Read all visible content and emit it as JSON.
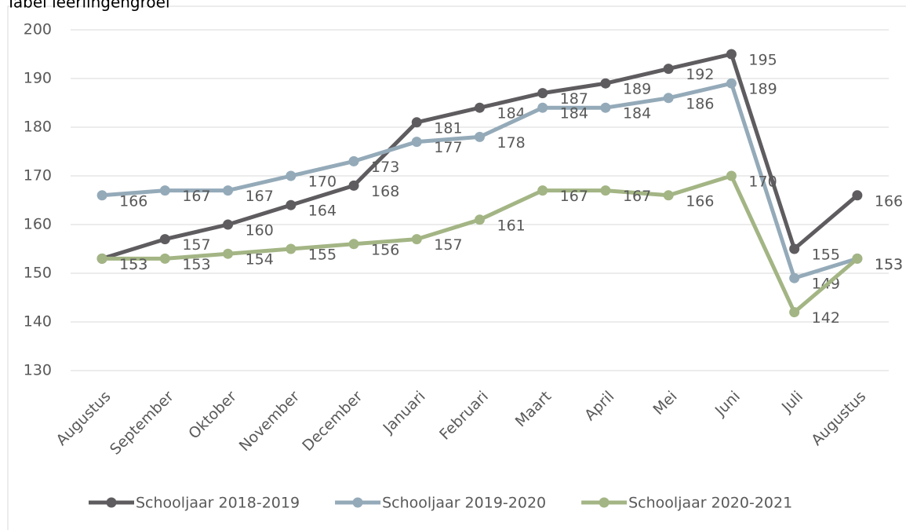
{
  "chart_data": {
    "type": "line",
    "title": "Tabel leerlingengroei",
    "categories": [
      "Augustus",
      "September",
      "Oktober",
      "November",
      "December",
      "Januari",
      "Februari",
      "Maart",
      "April",
      "Mei",
      "Juni",
      "Juli",
      "Augustus"
    ],
    "series": [
      {
        "name": "Schooljaar 2018-2019",
        "color": "#5f5c5f",
        "values": [
          153,
          157,
          160,
          164,
          168,
          181,
          184,
          187,
          189,
          192,
          195,
          155,
          166
        ]
      },
      {
        "name": "Schooljaar 2019-2020",
        "color": "#94aab9",
        "values": [
          166,
          167,
          167,
          170,
          173,
          177,
          178,
          184,
          184,
          186,
          189,
          149,
          153
        ]
      },
      {
        "name": "Schooljaar 2020-2021",
        "color": "#a3b584",
        "values": [
          153,
          153,
          154,
          155,
          156,
          157,
          161,
          167,
          167,
          166,
          170,
          142,
          153
        ]
      }
    ],
    "ylim": [
      130,
      200
    ],
    "yticks": [
      130,
      140,
      150,
      160,
      170,
      180,
      190,
      200
    ],
    "grid": true,
    "legend": "bottom"
  }
}
